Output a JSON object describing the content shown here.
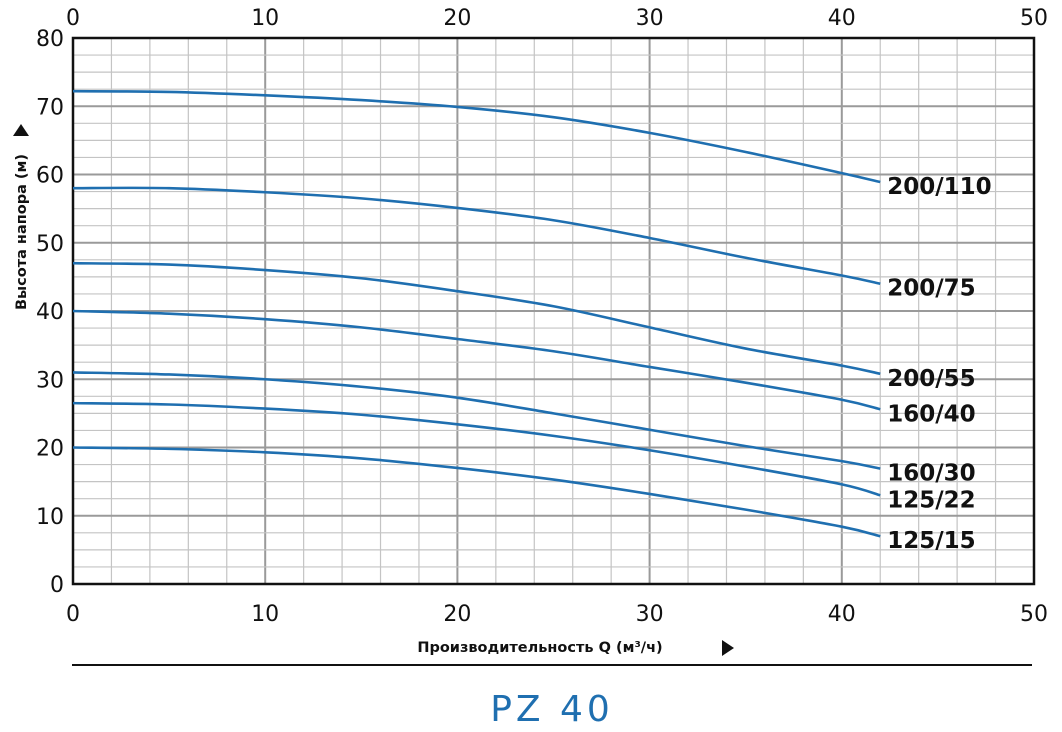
{
  "chart_data": {
    "type": "line",
    "title": "PZ 40",
    "xlabel": "Производительность Q (м³/ч)",
    "ylabel": "Высота напора (м)",
    "xlim": [
      0,
      50
    ],
    "ylim": [
      0,
      80
    ],
    "x_ticks": [
      "0",
      "10",
      "20",
      "30",
      "40",
      "50"
    ],
    "y_ticks": [
      "0",
      "10",
      "20",
      "30",
      "40",
      "50",
      "60",
      "70",
      "80"
    ],
    "grid": true,
    "line_color": "#1f6fb0",
    "series": [
      {
        "name": "200/110",
        "x": [
          0,
          5,
          10,
          15,
          20,
          25,
          30,
          35,
          40,
          42
        ],
        "y": [
          72.2,
          72.1,
          71.6,
          70.9,
          69.9,
          68.4,
          66.1,
          63.3,
          60.2,
          58.9
        ]
      },
      {
        "name": "200/75",
        "x": [
          0,
          5,
          10,
          15,
          20,
          25,
          30,
          35,
          40,
          42
        ],
        "y": [
          58.0,
          58.0,
          57.4,
          56.5,
          55.1,
          53.3,
          50.7,
          47.8,
          45.2,
          44.0
        ]
      },
      {
        "name": "200/55",
        "x": [
          0,
          5,
          10,
          15,
          20,
          25,
          30,
          35,
          40,
          42
        ],
        "y": [
          47.0,
          46.8,
          46.0,
          44.8,
          42.9,
          40.7,
          37.6,
          34.5,
          32.0,
          30.8
        ]
      },
      {
        "name": "160/40",
        "x": [
          0,
          5,
          10,
          15,
          20,
          25,
          30,
          35,
          40,
          42
        ],
        "y": [
          40.0,
          39.6,
          38.8,
          37.6,
          35.9,
          34.1,
          31.8,
          29.5,
          27.0,
          25.6
        ]
      },
      {
        "name": "160/30",
        "x": [
          0,
          5,
          10,
          15,
          20,
          25,
          30,
          35,
          40,
          42
        ],
        "y": [
          31.0,
          30.7,
          30.0,
          28.9,
          27.3,
          25.0,
          22.6,
          20.2,
          18.0,
          16.9
        ]
      },
      {
        "name": "125/22",
        "x": [
          0,
          5,
          10,
          15,
          20,
          25,
          30,
          35,
          40,
          42
        ],
        "y": [
          26.5,
          26.3,
          25.7,
          24.8,
          23.4,
          21.7,
          19.6,
          17.2,
          14.6,
          13.0
        ]
      },
      {
        "name": "125/15",
        "x": [
          0,
          5,
          10,
          15,
          20,
          25,
          30,
          35,
          40,
          42
        ],
        "y": [
          20.0,
          19.8,
          19.3,
          18.4,
          17.0,
          15.3,
          13.2,
          10.9,
          8.4,
          7.0
        ]
      }
    ]
  }
}
